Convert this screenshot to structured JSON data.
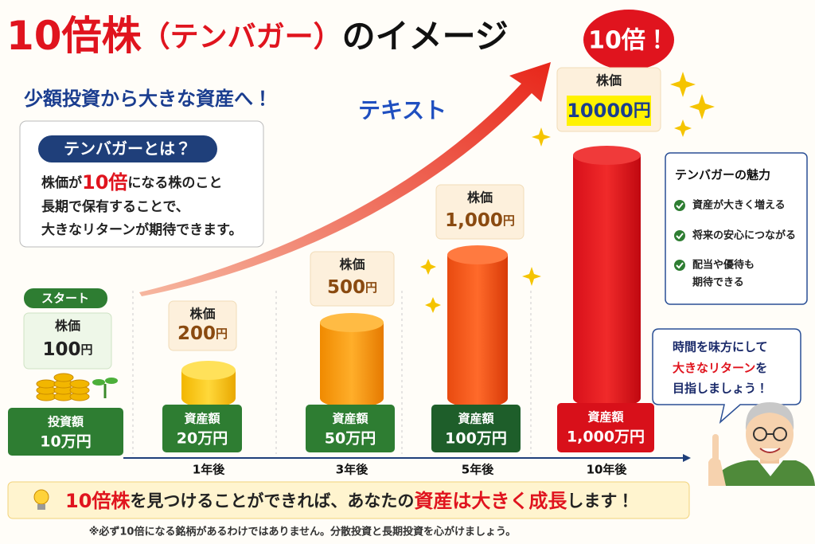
{
  "header": {
    "title": [
      "10倍株",
      "（テンバガー）",
      "のイメージ"
    ],
    "subtitle": "少額投資から大きな資産へ！",
    "arrow_label": "テキスト",
    "badge": "10倍！"
  },
  "info_box": {
    "heading": "テンバガーとは？",
    "line1": [
      "株価が",
      "10倍",
      "になる株のこと"
    ],
    "line2": "長期で保有することで、",
    "line3": "大きなリターンが期待できます。"
  },
  "stages": [
    {
      "tag": "スタート",
      "price_label": "株価",
      "price": "100",
      "unit": "円",
      "amount_label": "投資額",
      "amount": "10万円"
    },
    {
      "price_label": "株価",
      "price": "200",
      "unit": "円",
      "amount_label": "資産額",
      "amount": "20万円",
      "period": "1年後"
    },
    {
      "price_label": "株価",
      "price": "500",
      "unit": "円",
      "amount_label": "資産額",
      "amount": "50万円",
      "period": "3年後"
    },
    {
      "price_label": "株価",
      "price": "1,000",
      "unit": "円",
      "amount_label": "資産額",
      "amount": "100万円",
      "period": "5年後"
    },
    {
      "price_label": "株価",
      "price": "10000",
      "unit": "円",
      "amount_label": "資産額",
      "amount": "1,000万円",
      "period": "10年後"
    }
  ],
  "merits": {
    "title": "テンバガーの魅力",
    "items": [
      "資産が大きく増える",
      "将来の安心につながる",
      "配当や優待も",
      "期待できる"
    ]
  },
  "speech": {
    "line1": "時間を味方にして",
    "line2": [
      "大きなリターン",
      "を"
    ],
    "line3": "目指しましょう！"
  },
  "banner": [
    "10倍株",
    "を見つけることができれば、あなたの",
    "資産は大きく成長",
    "します！"
  ],
  "footnote": "※必ず10倍になる銘柄があるわけではありません。分散投資と長期投資を心がけましょう。"
}
